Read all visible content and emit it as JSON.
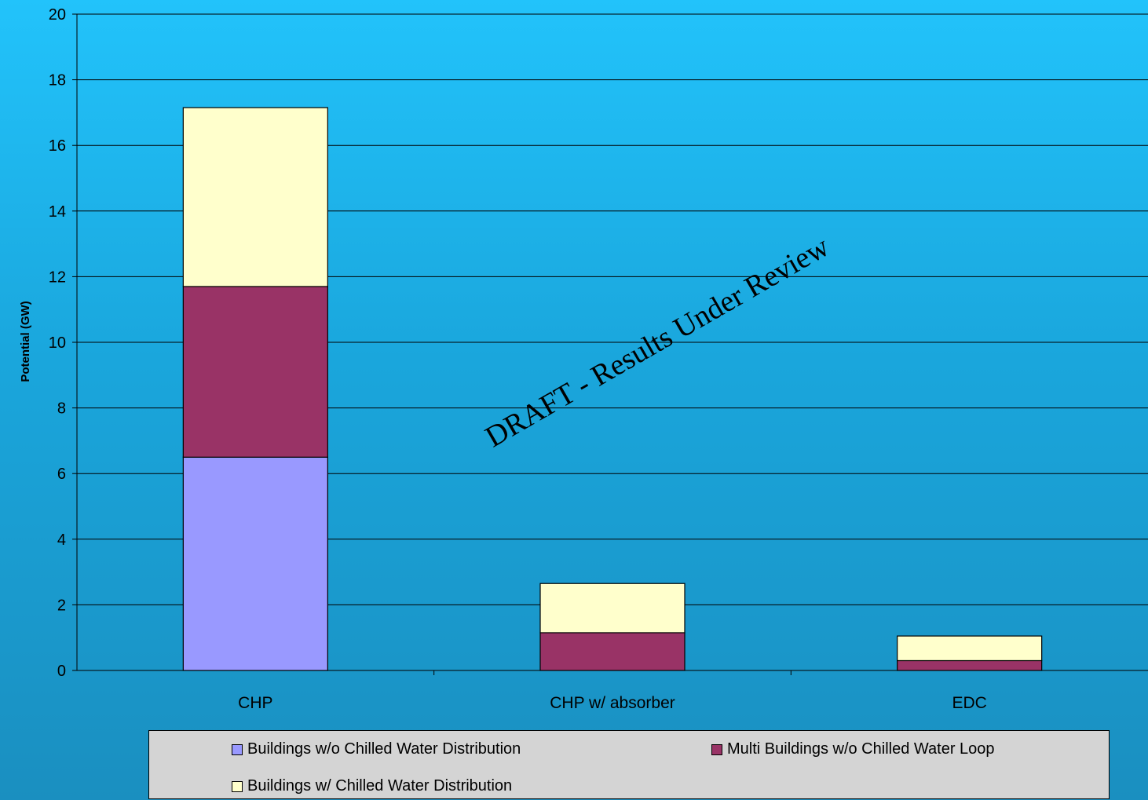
{
  "chart_data": {
    "type": "bar",
    "stacked": true,
    "categories": [
      "CHP",
      "CHP w/ absorber",
      "EDC"
    ],
    "series": [
      {
        "name": "Buildings w/o Chilled Water Distribution",
        "values": [
          6.5,
          0,
          0
        ],
        "color": "#9999ff"
      },
      {
        "name": "Multi Buildings w/o Chilled Water Loop",
        "values": [
          5.2,
          1.15,
          0.3
        ],
        "color": "#993366"
      },
      {
        "name": "Buildings w/ Chilled Water Distribution",
        "values": [
          5.45,
          1.5,
          0.75
        ],
        "color": "#ffffcc"
      }
    ],
    "xlabel": "",
    "ylabel": "Potential (GW)",
    "ylim": [
      0,
      20
    ],
    "yticks": [
      0,
      2,
      4,
      6,
      8,
      10,
      12,
      14,
      16,
      18,
      20
    ],
    "grid": true,
    "legend_position": "bottom",
    "annotation": "DRAFT - Results Under Review"
  },
  "legend": {
    "item1": "Buildings w/o Chilled Water Distribution",
    "item2": "Multi Buildings w/o Chilled Water Loop",
    "item3": "Buildings w/ Chilled Water Distribution"
  }
}
